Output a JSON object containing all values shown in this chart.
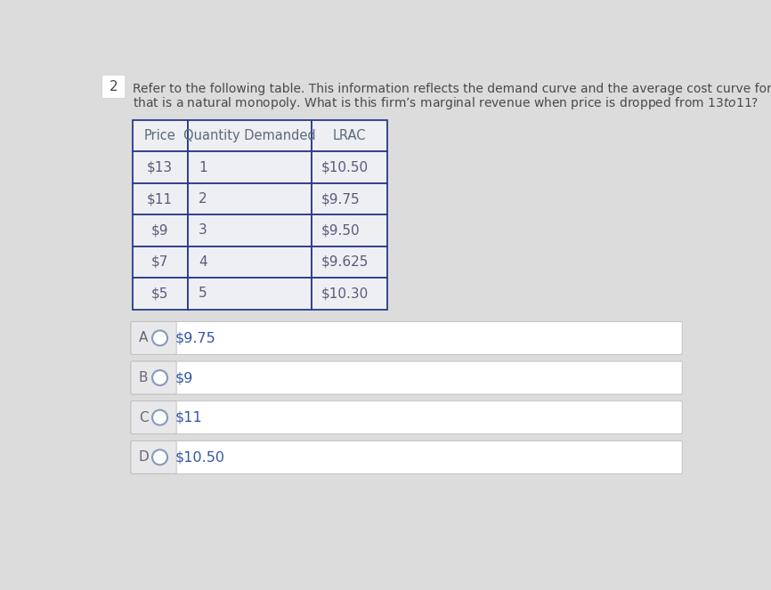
{
  "question_number": "2",
  "question_text_line1": "Refer to the following table. This information reflects the demand curve and the average cost curve for a firm",
  "question_text_line2": "that is a natural monopoly. What is this firm’s marginal revenue when price is dropped from $13 to $11?",
  "table_headers": [
    "Price",
    "Quantity Demanded",
    "LRAC"
  ],
  "table_rows": [
    [
      "$13",
      "1",
      "$10.50"
    ],
    [
      "$11",
      "2",
      "$9.75"
    ],
    [
      "$9",
      "3",
      "$9.50"
    ],
    [
      "$7",
      "4",
      "$9.625"
    ],
    [
      "$5",
      "5",
      "$10.30"
    ]
  ],
  "answer_options": [
    [
      "A",
      "$9.75"
    ],
    [
      "B",
      "$9"
    ],
    [
      "C",
      "$11"
    ],
    [
      "D",
      "$10.50"
    ]
  ],
  "bg_color": "#dcdcdc",
  "table_header_text_color": "#5a6a7a",
  "table_data_text_color": "#5a5a7a",
  "question_text_color": "#4a4a4a",
  "option_answer_color": "#3355aa",
  "option_label_color": "#666677",
  "answer_box_bg": "#ffffff",
  "answer_label_bg": "#e8e8ea",
  "table_border_color": "#2a3a8a",
  "table_cell_bg": "#eeeff3",
  "question_number_bg": "#ffffff",
  "question_number_color": "#444444"
}
